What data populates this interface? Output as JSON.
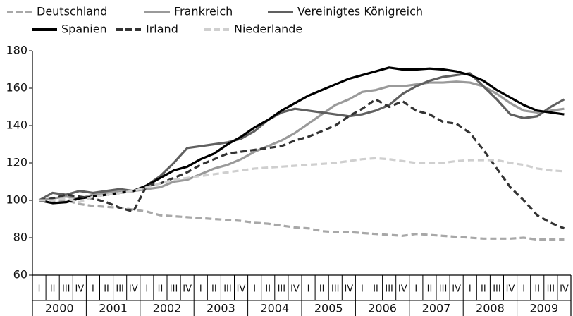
{
  "chart_data": {
    "type": "line",
    "categories": [
      "I",
      "II",
      "III",
      "IV",
      "I",
      "II",
      "III",
      "IV",
      "I",
      "II",
      "III",
      "IV",
      "I",
      "II",
      "III",
      "IV",
      "I",
      "II",
      "III",
      "IV",
      "I",
      "II",
      "III",
      "IV",
      "I",
      "II",
      "III",
      "IV",
      "I",
      "II",
      "III",
      "IV",
      "I",
      "II",
      "III",
      "IV",
      "I",
      "II",
      "III",
      "IV"
    ],
    "year_labels": [
      "2000",
      "2001",
      "2002",
      "2003",
      "2004",
      "2005",
      "2006",
      "2007",
      "2008",
      "2009"
    ],
    "ylim": [
      60,
      180
    ],
    "yticks": [
      60,
      80,
      100,
      120,
      140,
      160,
      180
    ],
    "grid": false,
    "series": [
      {
        "name": "Deutschland",
        "color": "#a8a8a8",
        "dashed": true,
        "values": [
          100,
          99.5,
          100,
          98,
          97,
          96.5,
          96,
          95,
          94,
          92,
          91.5,
          91,
          90.5,
          90,
          89.5,
          89,
          88,
          87.5,
          86.5,
          85.5,
          85,
          83.5,
          83,
          83,
          82.5,
          82,
          81.5,
          81,
          82,
          81.5,
          81,
          80.5,
          80,
          79.5,
          79.5,
          79.5,
          80,
          79,
          79,
          79
        ]
      },
      {
        "name": "Frankreich",
        "color": "#9a9a9a",
        "dashed": false,
        "values": [
          100,
          101,
          102,
          101,
          103,
          104,
          105,
          105,
          106,
          107,
          110,
          111,
          114,
          117,
          119,
          122,
          126,
          129,
          132,
          136,
          141,
          146,
          151,
          154,
          158,
          159,
          161,
          161,
          162,
          163,
          163,
          163.5,
          163,
          161,
          157,
          152,
          148,
          147,
          148,
          149
        ]
      },
      {
        "name": "Vereinigtes Königreich",
        "color": "#606060",
        "dashed": false,
        "values": [
          100,
          104,
          103,
          105,
          104,
          105,
          106,
          105,
          108,
          113,
          120,
          128,
          129,
          130,
          131,
          133,
          137,
          143,
          147,
          149,
          148,
          147,
          146,
          145,
          146,
          148,
          151,
          157,
          161,
          164,
          166,
          167,
          168,
          161,
          154,
          146,
          144,
          145,
          150,
          154
        ]
      },
      {
        "name": "Spanien",
        "color": "#000000",
        "dashed": false,
        "values": [
          100,
          98.5,
          99,
          101,
          102,
          103,
          104,
          105,
          108,
          112,
          116,
          118,
          122,
          125,
          130,
          134,
          139,
          143,
          148,
          152,
          156,
          159,
          162,
          165,
          167,
          169,
          171,
          170,
          170,
          170.5,
          170,
          169,
          167,
          164,
          159,
          155,
          151,
          148,
          147,
          146
        ]
      },
      {
        "name": "Irland",
        "color": "#333333",
        "dashed": true,
        "values": [
          100,
          101,
          103,
          102,
          101,
          99,
          96,
          94,
          108,
          109,
          112,
          115,
          119,
          122,
          125,
          126,
          127,
          128,
          129,
          132,
          134,
          137,
          140,
          145,
          149,
          154,
          150,
          153,
          148,
          146,
          142,
          141,
          136,
          127,
          117,
          107,
          100,
          92,
          88,
          85
        ]
      },
      {
        "name": "Niederlande",
        "color": "#cfcfcf",
        "dashed": true,
        "values": [
          100,
          100,
          101,
          99,
          102,
          103,
          104,
          105,
          107,
          109,
          111,
          112,
          113,
          114,
          115,
          116,
          117,
          117.5,
          118,
          118.5,
          119,
          119.5,
          120,
          121,
          122,
          122.5,
          122,
          121,
          120,
          120,
          120,
          121,
          121.5,
          121.5,
          121.5,
          120,
          119,
          117,
          116,
          115.5
        ]
      }
    ]
  }
}
